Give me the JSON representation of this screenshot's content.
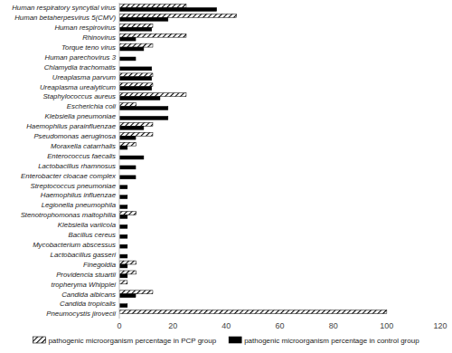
{
  "chart_data": {
    "type": "bar",
    "orientation": "horizontal",
    "categories": [
      "Human respiratory syncytial virus",
      "Human betaherpesvirus 5(CMV)",
      "Human respirovirus",
      "Rhinovirus",
      "Torque teno virus",
      "Human parechovirus 3",
      "Chlamydia trachomatis",
      "Ureaplasma parvum",
      "Ureaplasma urealyticum",
      "Staphylococcus aureus",
      "Escherichia coli",
      "Klebsiella pneumoniae",
      "Haemophilus parainfluenzae",
      "Pseudomonas aeruginosa",
      "Moraxella catarrhalis",
      "Enterococcus faecalis",
      "Lactobacillus rhamnosus",
      "Enterobacter cloacae complex",
      "Streptococcus pneumoniae",
      "Haemophilus influenzae",
      "Legionella pneumophila",
      "Stenotrophomonas maltophilia",
      "Klebsiella variicola",
      "Bacillus cereus",
      "Mycobacterium abscessus",
      "Lactobacillus gasseri",
      "Finegoldia",
      "Providencia stuartii",
      "tropheryma Whipplei",
      "Candida albicans",
      "Candida tropicalis",
      "Pneumocystis jirovecii"
    ],
    "series": [
      {
        "name": "pathogenic microorganism percentage in PCP group",
        "color": "#000000",
        "values": [
          25,
          43.8,
          12.5,
          25,
          12.5,
          0,
          0,
          12.5,
          12.5,
          25,
          6.3,
          0,
          12.5,
          12.5,
          6.3,
          0,
          0,
          0,
          0,
          0,
          0,
          6.3,
          0,
          0,
          0,
          0,
          6.3,
          6.3,
          3,
          12.5,
          0,
          100
        ]
      },
      {
        "name": "pathogenic microorganism percentage in control group",
        "color": "#000000",
        "values": [
          36.4,
          18.2,
          12.1,
          6.1,
          9.1,
          6.1,
          12.1,
          12.1,
          12.1,
          15.2,
          18.2,
          18.2,
          9.1,
          6.1,
          3,
          9.1,
          6.1,
          6.1,
          3,
          3,
          3,
          3,
          3,
          3,
          3,
          3,
          3,
          3,
          0,
          6.1,
          3,
          0
        ]
      }
    ],
    "xlim": [
      0,
      120
    ],
    "xticks": [
      0,
      20,
      40,
      60,
      80,
      100,
      120
    ],
    "grid": false,
    "legend": "bottom"
  }
}
